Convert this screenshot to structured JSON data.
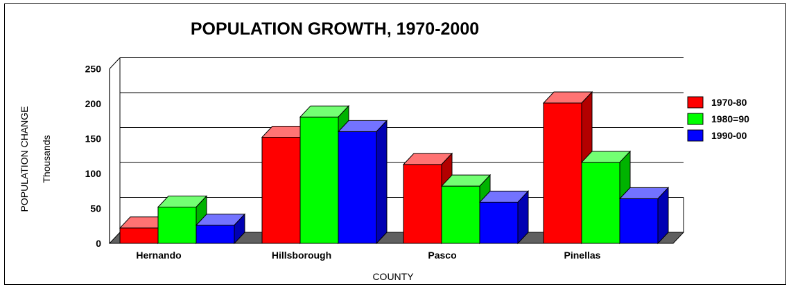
{
  "chart_data": {
    "type": "bar",
    "title": "POPULATION GROWTH, 1970-2000",
    "xlabel": "COUNTY",
    "ylabel": "POPULATION CHANGE",
    "ylabel_units": "Thousands",
    "categories": [
      "Hernando",
      "Hillsborough",
      "Pasco",
      "Pinellas"
    ],
    "series": [
      {
        "name": "1970-80",
        "values": [
          22,
          152,
          113,
          201
        ],
        "color": "#ff0000"
      },
      {
        "name": "1980=90",
        "values": [
          52,
          181,
          82,
          116
        ],
        "color": "#00ff00"
      },
      {
        "name": "1990-00",
        "values": [
          26,
          160,
          59,
          64
        ],
        "color": "#0000ff"
      }
    ],
    "ylim": [
      0,
      250
    ],
    "yticks": [
      0,
      50,
      100,
      150,
      200,
      250
    ],
    "grid": true,
    "legend_position": "right",
    "three_d": true,
    "floor_color": "#606060"
  }
}
